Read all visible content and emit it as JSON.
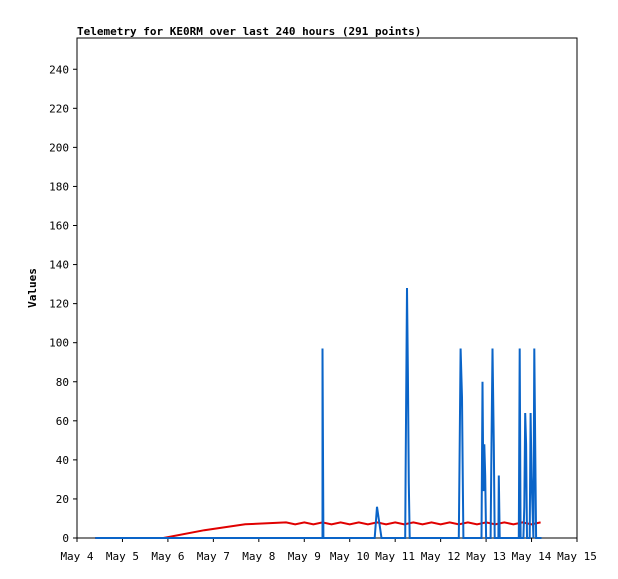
{
  "chart_data": {
    "type": "line",
    "title": "Telemetry for KE0RM over last 240 hours (291 points)",
    "ylabel": "Values",
    "xlabel": "",
    "ylim": [
      0,
      256
    ],
    "xlim_days": [
      "May 4",
      "May 15"
    ],
    "y_ticks": [
      0,
      20,
      40,
      60,
      80,
      100,
      120,
      140,
      160,
      180,
      200,
      220,
      240
    ],
    "x_ticks": [
      "May 4",
      "May 5",
      "May 6",
      "May 7",
      "May 8",
      "May 9",
      "May 10",
      "May 11",
      "May 12",
      "May 13",
      "May 14",
      "May 15"
    ],
    "grid": false,
    "series": [
      {
        "color": "#e00000",
        "points": [
          [
            4.4,
            0
          ],
          [
            5.9,
            0
          ],
          [
            6.8,
            4
          ],
          [
            7.7,
            7
          ],
          [
            8.6,
            8
          ],
          [
            8.8,
            7
          ],
          [
            9.0,
            8
          ],
          [
            9.2,
            7
          ],
          [
            9.4,
            8
          ],
          [
            9.6,
            7
          ],
          [
            9.8,
            8
          ],
          [
            10.0,
            7
          ],
          [
            10.2,
            8
          ],
          [
            10.4,
            7
          ],
          [
            10.6,
            8
          ],
          [
            10.8,
            7
          ],
          [
            11.0,
            8
          ],
          [
            11.2,
            7
          ],
          [
            11.4,
            8
          ],
          [
            11.6,
            7
          ],
          [
            11.8,
            8
          ],
          [
            12.0,
            7
          ],
          [
            12.2,
            8
          ],
          [
            12.4,
            7
          ],
          [
            12.6,
            8
          ],
          [
            12.8,
            7
          ],
          [
            13.0,
            8
          ],
          [
            13.2,
            7
          ],
          [
            13.4,
            8
          ],
          [
            13.6,
            7
          ],
          [
            13.8,
            8
          ],
          [
            14.0,
            7
          ],
          [
            14.2,
            8
          ]
        ]
      },
      {
        "color": "#0a64c8",
        "points": [
          [
            4.4,
            0
          ],
          [
            9.4,
            0
          ],
          [
            9.4,
            97
          ],
          [
            9.42,
            0
          ],
          [
            10.55,
            0
          ],
          [
            10.6,
            16
          ],
          [
            10.7,
            0
          ],
          [
            11.22,
            0
          ],
          [
            11.23,
            32
          ],
          [
            11.26,
            128
          ],
          [
            11.28,
            84
          ],
          [
            11.3,
            28
          ],
          [
            11.32,
            0
          ],
          [
            12.4,
            0
          ],
          [
            12.42,
            48
          ],
          [
            12.44,
            97
          ],
          [
            12.47,
            72
          ],
          [
            12.49,
            24
          ],
          [
            12.5,
            0
          ],
          [
            12.9,
            0
          ],
          [
            12.92,
            80
          ],
          [
            12.94,
            24
          ],
          [
            12.96,
            48
          ],
          [
            12.98,
            32
          ],
          [
            13.0,
            0
          ],
          [
            13.1,
            0
          ],
          [
            13.12,
            48
          ],
          [
            13.14,
            97
          ],
          [
            13.17,
            48
          ],
          [
            13.19,
            0
          ],
          [
            13.27,
            0
          ],
          [
            13.28,
            32
          ],
          [
            13.3,
            0
          ],
          [
            13.72,
            0
          ],
          [
            13.74,
            97
          ],
          [
            13.76,
            0
          ],
          [
            13.82,
            0
          ],
          [
            13.84,
            16
          ],
          [
            13.86,
            64
          ],
          [
            13.88,
            48
          ],
          [
            13.9,
            0
          ],
          [
            13.96,
            0
          ],
          [
            13.98,
            64
          ],
          [
            14.0,
            32
          ],
          [
            14.04,
            0
          ],
          [
            14.06,
            97
          ],
          [
            14.08,
            48
          ],
          [
            14.1,
            0
          ],
          [
            14.22,
            0
          ]
        ]
      }
    ]
  }
}
